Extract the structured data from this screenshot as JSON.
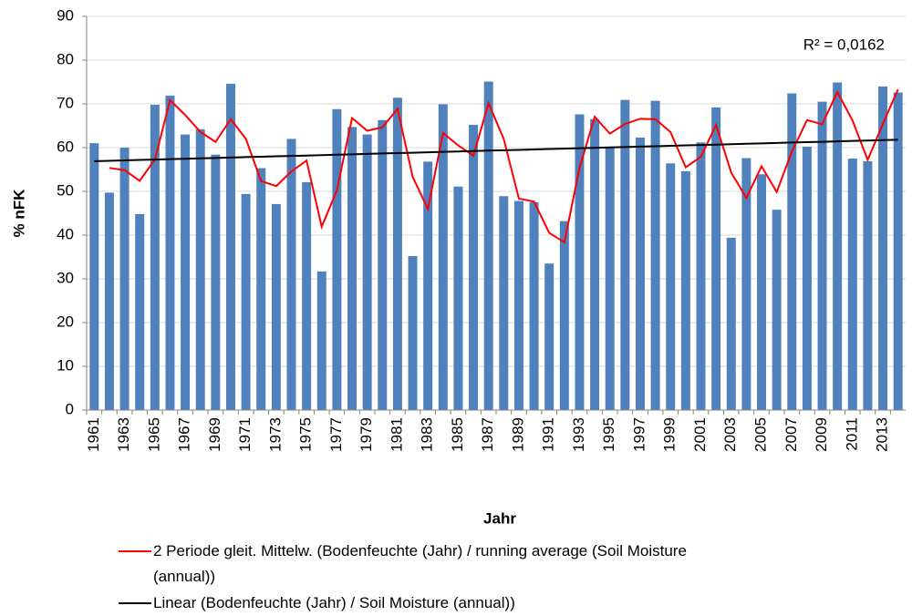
{
  "chart_data": {
    "type": "bar",
    "x_label": "Jahr",
    "y_label": "% nFK",
    "annotation": "R² = 0,0162",
    "categories": [
      "1961",
      null,
      "1963",
      null,
      "1965",
      null,
      "1967",
      null,
      "1969",
      null,
      "1971",
      null,
      "1973",
      null,
      "1975",
      null,
      "1977",
      null,
      "1979",
      null,
      "1981",
      null,
      "1983",
      null,
      "1985",
      null,
      "1987",
      null,
      "1989",
      null,
      "1991",
      null,
      "1993",
      null,
      "1995",
      null,
      "1997",
      null,
      "1999",
      null,
      "2001",
      null,
      "2003",
      null,
      "2005",
      null,
      "2007",
      null,
      "2009",
      null,
      "2011",
      null,
      "2013",
      null
    ],
    "ylim": [
      0,
      90
    ],
    "yticks": [
      0,
      10,
      20,
      30,
      40,
      50,
      60,
      70,
      80,
      90
    ],
    "grid": true,
    "series": [
      {
        "type": "bar",
        "color": "#4f81bd",
        "values": [
          61,
          49.7,
          60,
          44.8,
          69.8,
          71.9,
          63,
          64.2,
          58.4,
          74.6,
          49.4,
          55.3,
          47.1,
          62,
          52.1,
          31.7,
          68.8,
          64.7,
          63,
          66.3,
          71.4,
          35.2,
          56.8,
          69.9,
          51.1,
          65.2,
          75.1,
          48.9,
          47.8,
          47.5,
          33.5,
          43.2,
          67.6,
          66.5,
          59.9,
          70.9,
          62.3,
          70.7,
          56.4,
          54.6,
          61.2,
          69.2,
          39.4,
          57.6,
          53.9,
          45.8,
          72.4,
          60.2,
          70.5,
          74.9,
          57.5,
          56.9,
          74,
          72.6
        ]
      },
      {
        "type": "line",
        "name": "2 Periode gleit. Mittelw. (Bodenfeuchte (Jahr) / running average (Soil Moisture (annual))",
        "color": "#ff0000",
        "values": [
          null,
          55.35,
          54.85,
          52.4,
          57.3,
          70.85,
          67.45,
          63.6,
          61.3,
          66.5,
          62,
          52.35,
          51.2,
          54.55,
          57.05,
          41.9,
          50.25,
          66.75,
          63.85,
          64.65,
          68.85,
          53.3,
          46,
          63.35,
          60.5,
          58.15,
          70.15,
          62,
          48.35,
          47.65,
          40.5,
          38.35,
          55.4,
          67.05,
          63.2,
          65.4,
          66.6,
          66.5,
          63.55,
          55.5,
          57.9,
          65.2,
          54.3,
          48.5,
          55.75,
          49.85,
          59.1,
          66.3,
          65.35,
          72.7,
          66.2,
          57.2,
          65.45,
          73.3
        ]
      },
      {
        "type": "line",
        "name": "Linear (Bodenfeuchte (Jahr) / Soil Moisture (annual))",
        "color": "#000000",
        "values": [
          56.9,
          56.99,
          57.09,
          57.18,
          57.27,
          57.36,
          57.45,
          57.55,
          57.64,
          57.73,
          57.83,
          57.92,
          58.01,
          58.1,
          58.19,
          58.29,
          58.38,
          58.47,
          58.57,
          58.66,
          58.75,
          58.84,
          58.94,
          59.03,
          59.12,
          59.21,
          59.31,
          59.4,
          59.49,
          59.58,
          59.68,
          59.77,
          59.86,
          59.95,
          60.05,
          60.14,
          60.23,
          60.32,
          60.42,
          60.51,
          60.6,
          60.69,
          60.79,
          60.88,
          60.97,
          61.06,
          61.16,
          61.25,
          61.34,
          61.43,
          61.53,
          61.62,
          61.71,
          61.8
        ]
      }
    ]
  }
}
